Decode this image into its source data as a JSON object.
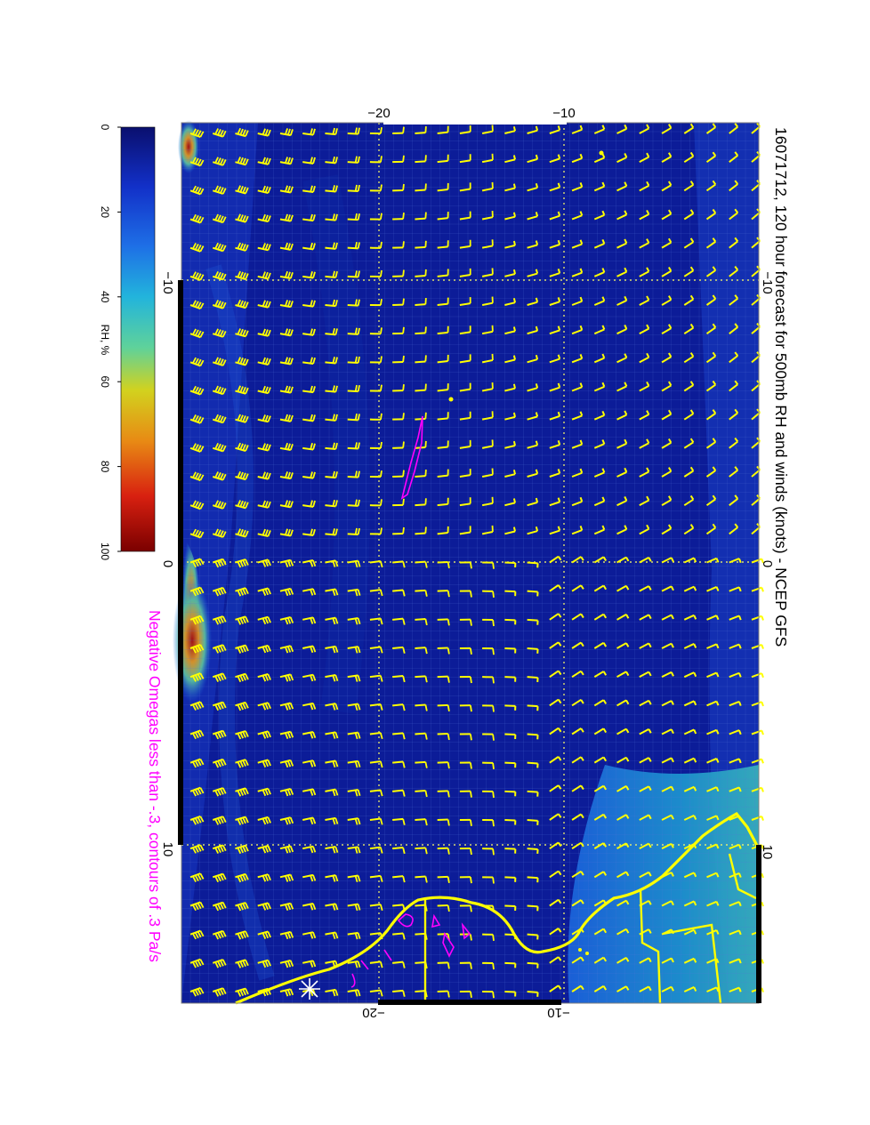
{
  "title": "16071712, 120 hour forecast for 500mb RH and winds (knots) - NCEP GFS",
  "subtitle": "Negative Omegas less than -.3, contours of .3 Pa/s",
  "colorbar": {
    "label": "RH, %",
    "ticks": [
      "0",
      "20",
      "40",
      "60",
      "80",
      "100"
    ],
    "colors": [
      "#0a0f6e",
      "#1230c8",
      "#1e6fe6",
      "#22b4dc",
      "#5fd29a",
      "#d2d21e",
      "#e88a14",
      "#d82010",
      "#7a0000"
    ]
  },
  "map_labels": {
    "top_ticks": [
      "−20",
      "−10"
    ],
    "bottom_ticks": [
      "−20",
      "−10"
    ],
    "left_ticks": [
      "−10",
      "0",
      "10"
    ],
    "right_ticks": [
      "−10",
      "0",
      "10"
    ]
  },
  "colors": {
    "background_field": "#0a1e96",
    "wind_barb": "#ffff00",
    "coastline": "#ffff00",
    "omega_contour": "#ff00ff",
    "grid": "#ffff66"
  }
}
